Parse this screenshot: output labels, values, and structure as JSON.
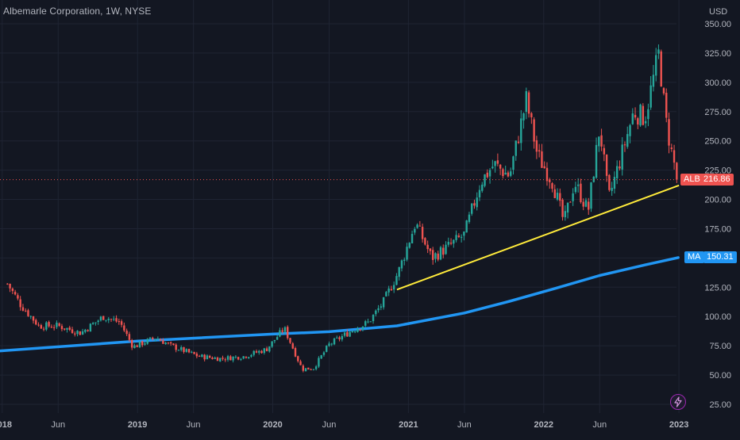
{
  "header": {
    "title": "Albemarle Corporation, 1W, NYSE",
    "currency": "USD"
  },
  "tags": {
    "symbol": "ALB",
    "last_price": "216.86",
    "ma_label": "MA",
    "ma_value": "150.31"
  },
  "colors": {
    "background": "#131722",
    "up": "#26a69a",
    "down": "#ef5350",
    "ma_line": "#2196f3",
    "trend_line": "#ffeb3b",
    "grid": "#1f2433",
    "axis_text": "#b2b5be"
  },
  "icons": {
    "alert": "lightning-alert-icon"
  },
  "chart_data": {
    "type": "candlestick",
    "title": "Albemarle Corporation, 1W, NYSE",
    "ylabel": "USD",
    "ylim": [
      20,
      355
    ],
    "y_ticks": [
      "25.00",
      "50.00",
      "75.00",
      "100.00",
      "125.00",
      "150.00",
      "175.00",
      "200.00",
      "225.00",
      "250.00",
      "275.00",
      "300.00",
      "325.00",
      "350.00"
    ],
    "x_ticks": [
      "2018",
      "Jun",
      "2019",
      "Jun",
      "2020",
      "Jun",
      "2021",
      "Jun",
      "2022",
      "Jun",
      "2023"
    ],
    "price_anchors": [
      [
        "2018-01-15",
        128
      ],
      [
        "2018-02-20",
        110
      ],
      [
        "2018-04-10",
        92
      ],
      [
        "2018-06-01",
        92
      ],
      [
        "2018-08-01",
        86
      ],
      [
        "2018-10-01",
        100
      ],
      [
        "2018-11-15",
        95
      ],
      [
        "2018-12-20",
        74
      ],
      [
        "2019-02-20",
        82
      ],
      [
        "2019-04-01",
        75
      ],
      [
        "2019-06-15",
        66
      ],
      [
        "2019-08-15",
        64
      ],
      [
        "2019-10-15",
        66
      ],
      [
        "2019-12-15",
        72
      ],
      [
        "2020-02-01",
        90
      ],
      [
        "2020-03-20",
        55
      ],
      [
        "2020-04-20",
        56
      ],
      [
        "2020-06-01",
        76
      ],
      [
        "2020-08-01",
        88
      ],
      [
        "2020-09-15",
        95
      ],
      [
        "2020-10-25",
        112
      ],
      [
        "2020-12-05",
        138
      ],
      [
        "2021-01-20",
        180
      ],
      [
        "2021-03-05",
        150
      ],
      [
        "2021-04-20",
        160
      ],
      [
        "2021-06-01",
        170
      ],
      [
        "2021-07-15",
        215
      ],
      [
        "2021-08-20",
        230
      ],
      [
        "2021-10-01",
        220
      ],
      [
        "2021-11-15",
        285
      ],
      [
        "2021-12-15",
        238
      ],
      [
        "2022-01-25",
        215
      ],
      [
        "2022-02-25",
        180
      ],
      [
        "2022-03-25",
        215
      ],
      [
        "2022-05-01",
        190
      ],
      [
        "2022-06-01",
        262
      ],
      [
        "2022-06-25",
        200
      ],
      [
        "2022-08-01",
        240
      ],
      [
        "2022-09-01",
        275
      ],
      [
        "2022-10-01",
        270
      ],
      [
        "2022-11-08",
        325
      ],
      [
        "2022-11-25",
        270
      ],
      [
        "2022-12-15",
        235
      ],
      [
        "2022-12-30",
        216.86
      ]
    ],
    "moving_average": {
      "name": "MA",
      "last": 150.31,
      "points": [
        [
          "2017-12-01",
          70
        ],
        [
          "2019-01-01",
          79
        ],
        [
          "2020-01-01",
          85
        ],
        [
          "2020-06-01",
          87
        ],
        [
          "2020-12-01",
          92
        ],
        [
          "2021-06-01",
          103
        ],
        [
          "2021-10-01",
          113
        ],
        [
          "2022-02-01",
          124
        ],
        [
          "2022-06-01",
          135
        ],
        [
          "2022-10-01",
          144
        ],
        [
          "2022-12-30",
          150.31
        ]
      ]
    },
    "trend_line": {
      "start": [
        "2020-12-01",
        123
      ],
      "end": [
        "2023-01-01",
        212
      ]
    },
    "last_price": 216.86,
    "grid": true,
    "legend": "right-axis tags"
  }
}
